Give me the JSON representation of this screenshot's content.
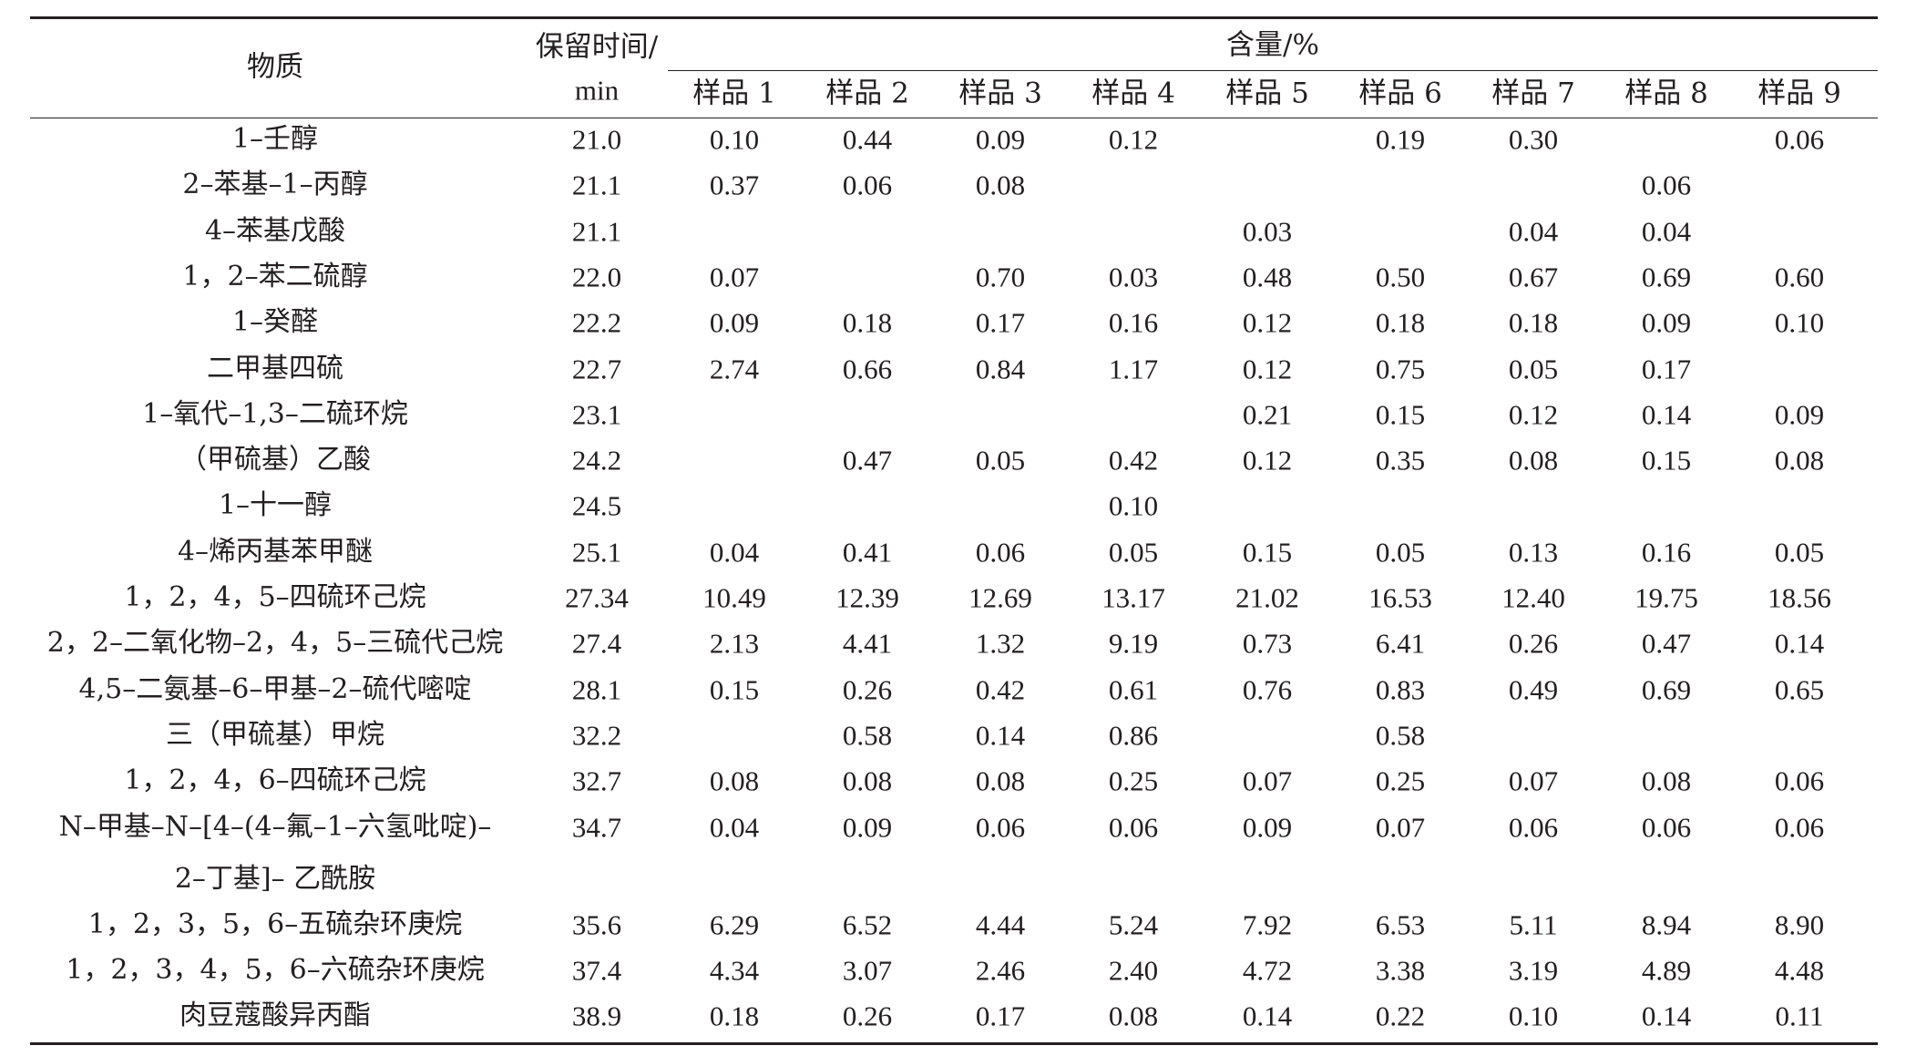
{
  "table": {
    "header": {
      "substance": "物质",
      "retention_line1": "保留时间/",
      "retention_line2": "min",
      "content": "含量/%",
      "samples": [
        "样品 1",
        "样品 2",
        "样品 3",
        "样品 4",
        "样品 5",
        "样品 6",
        "样品 7",
        "样品 8",
        "样品 9"
      ]
    },
    "rows": [
      {
        "name": "1–壬醇",
        "rt": "21.0",
        "v": [
          "0.10",
          "0.44",
          "0.09",
          "0.12",
          "",
          "0.19",
          "0.30",
          "",
          "0.06"
        ]
      },
      {
        "name": "2–苯基–1–丙醇",
        "rt": "21.1",
        "v": [
          "0.37",
          "0.06",
          "0.08",
          "",
          "",
          "",
          "",
          "0.06",
          ""
        ]
      },
      {
        "name": "4–苯基戊酸",
        "rt": "21.1",
        "v": [
          "",
          "",
          "",
          "",
          "0.03",
          "",
          "0.04",
          "0.04",
          ""
        ]
      },
      {
        "name": "1，2–苯二硫醇",
        "rt": "22.0",
        "v": [
          "0.07",
          "",
          "0.70",
          "0.03",
          "0.48",
          "0.50",
          "0.67",
          "0.69",
          "0.60"
        ]
      },
      {
        "name": "1–癸醛",
        "rt": "22.2",
        "v": [
          "0.09",
          "0.18",
          "0.17",
          "0.16",
          "0.12",
          "0.18",
          "0.18",
          "0.09",
          "0.10"
        ]
      },
      {
        "name": "二甲基四硫",
        "rt": "22.7",
        "v": [
          "2.74",
          "0.66",
          "0.84",
          "1.17",
          "0.12",
          "0.75",
          "0.05",
          "0.17",
          ""
        ]
      },
      {
        "name": "1–氧代–1,3–二硫环烷",
        "rt": "23.1",
        "v": [
          "",
          "",
          "",
          "",
          "0.21",
          "0.15",
          "0.12",
          "0.14",
          "0.09"
        ]
      },
      {
        "name": "（甲硫基）乙酸",
        "rt": "24.2",
        "v": [
          "",
          "0.47",
          "0.05",
          "0.42",
          "0.12",
          "0.35",
          "0.08",
          "0.15",
          "0.08"
        ]
      },
      {
        "name": "1–十一醇",
        "rt": "24.5",
        "v": [
          "",
          "",
          "",
          "0.10",
          "",
          "",
          "",
          "",
          ""
        ]
      },
      {
        "name": "4–烯丙基苯甲醚",
        "rt": "25.1",
        "v": [
          "0.04",
          "0.41",
          "0.06",
          "0.05",
          "0.15",
          "0.05",
          "0.13",
          "0.16",
          "0.05"
        ]
      },
      {
        "name": "1，2，4，5–四硫环己烷",
        "rt": "27.34",
        "v": [
          "10.49",
          "12.39",
          "12.69",
          "13.17",
          "21.02",
          "16.53",
          "12.40",
          "19.75",
          "18.56"
        ]
      },
      {
        "name": "2，2–二氧化物–2，4，5–三硫代己烷",
        "rt": "27.4",
        "v": [
          "2.13",
          "4.41",
          "1.32",
          "9.19",
          "0.73",
          "6.41",
          "0.26",
          "0.47",
          "0.14"
        ]
      },
      {
        "name": "4,5–二氨基–6–甲基–2–硫代嘧啶",
        "rt": "28.1",
        "v": [
          "0.15",
          "0.26",
          "0.42",
          "0.61",
          "0.76",
          "0.83",
          "0.49",
          "0.69",
          "0.65"
        ]
      },
      {
        "name": "三（甲硫基）甲烷",
        "rt": "32.2",
        "v": [
          "",
          "0.58",
          "0.14",
          "0.86",
          "",
          "0.58",
          "",
          "",
          ""
        ]
      },
      {
        "name": "1，2，4，6–四硫环己烷",
        "rt": "32.7",
        "v": [
          "0.08",
          "0.08",
          "0.08",
          "0.25",
          "0.07",
          "0.25",
          "0.07",
          "0.08",
          "0.06"
        ]
      },
      {
        "name": "N–甲基–N–[4–(4–氟–1–六氢吡啶)–",
        "name2": "2–丁基]– 乙酰胺",
        "rt": "34.7",
        "v": [
          "0.04",
          "0.09",
          "0.06",
          "0.06",
          "0.09",
          "0.07",
          "0.06",
          "0.06",
          "0.06"
        ]
      },
      {
        "name": "1，2，3，5，6–五硫杂环庚烷",
        "rt": "35.6",
        "v": [
          "6.29",
          "6.52",
          "4.44",
          "5.24",
          "7.92",
          "6.53",
          "5.11",
          "8.94",
          "8.90"
        ]
      },
      {
        "name": "1，2，3，4，5，6–六硫杂环庚烷",
        "rt": "37.4",
        "v": [
          "4.34",
          "3.07",
          "2.46",
          "2.40",
          "4.72",
          "3.38",
          "3.19",
          "4.89",
          "4.48"
        ]
      },
      {
        "name": "肉豆蔻酸异丙酯",
        "rt": "38.9",
        "v": [
          "0.18",
          "0.26",
          "0.17",
          "0.08",
          "0.14",
          "0.22",
          "0.10",
          "0.14",
          "0.11"
        ]
      }
    ]
  }
}
